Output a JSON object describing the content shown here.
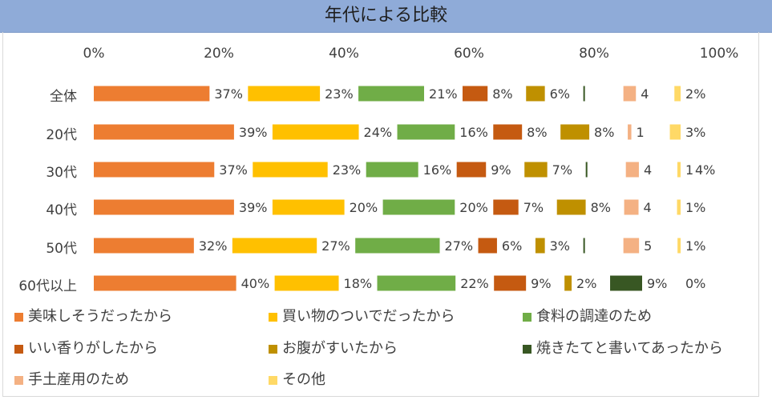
{
  "chart_data": {
    "type": "bar",
    "orientation": "horizontal",
    "stacked": "percent",
    "title": "年代による比較",
    "xlim": [
      0,
      100
    ],
    "x_ticks": [
      "0%",
      "20%",
      "40%",
      "60%",
      "80%",
      "100%"
    ],
    "categories": [
      "全体",
      "20代",
      "30代",
      "40代",
      "50代",
      "60代以上"
    ],
    "legend_position": "bottom",
    "series": [
      {
        "name": "美味しそうだったから",
        "color": "#ed7d31",
        "values": [
          37,
          39,
          37,
          39,
          32,
          40
        ],
        "labels": [
          "37%",
          "39%",
          "37%",
          "39%",
          "32%",
          "40%"
        ]
      },
      {
        "name": "買い物のついでだったから",
        "color": "#ffc000",
        "values": [
          23,
          24,
          23,
          20,
          27,
          18
        ],
        "labels": [
          "23%",
          "24%",
          "23%",
          "20%",
          "27%",
          "18%"
        ]
      },
      {
        "name": "食料の調達のため",
        "color": "#70ad47",
        "values": [
          21,
          16,
          16,
          20,
          27,
          22
        ],
        "labels": [
          "21%",
          "16%",
          "16%",
          "20%",
          "27%",
          "22%"
        ]
      },
      {
        "name": "いい香りがしたから",
        "color": "#c55a11",
        "values": [
          8,
          8,
          9,
          7,
          6,
          9
        ],
        "labels": [
          "8%",
          "8%",
          "9%",
          "7%",
          "6%",
          "9%"
        ]
      },
      {
        "name": "お腹がすいたから",
        "color": "#bf9000",
        "values": [
          6,
          8,
          7,
          8,
          3,
          2
        ],
        "labels": [
          "6%",
          "8%",
          "7%",
          "8%",
          "3%",
          "2%"
        ]
      },
      {
        "name": "焼きたてと書いてあったから",
        "color": "#385723",
        "values": [
          0.5,
          0,
          0.5,
          0,
          0.5,
          9
        ],
        "labels": [
          "",
          "",
          "",
          "",
          "",
          "9%"
        ]
      },
      {
        "name": "手土産用のため",
        "color": "#f4b183",
        "values": [
          4,
          1,
          4,
          4,
          5,
          0
        ],
        "labels": [
          "4",
          "1",
          "4",
          "4",
          "5",
          "0%"
        ]
      },
      {
        "name": "その他",
        "color": "#ffd966",
        "values": [
          2,
          3,
          1,
          1,
          1,
          0
        ],
        "labels": [
          "2%",
          "3%",
          "1",
          "1%",
          "1%",
          ""
        ]
      }
    ],
    "extra_labels": [
      {
        "row": 2,
        "text": "4%"
      }
    ]
  }
}
